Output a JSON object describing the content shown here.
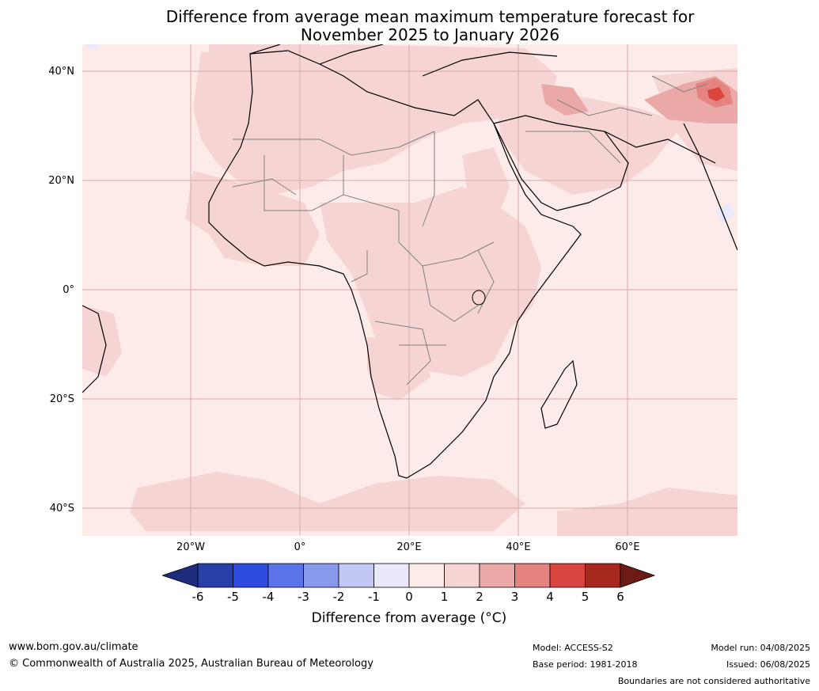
{
  "title": {
    "line1": "Difference from average mean maximum temperature forecast for",
    "line2": "November 2025 to January 2026"
  },
  "map": {
    "lat_labels": [
      "40°N",
      "20°N",
      "0°",
      "20°S",
      "40°S"
    ],
    "lon_labels": [
      "20°W",
      "0°",
      "20°E",
      "40°E",
      "60°E"
    ],
    "colors": {
      "background": "#fcebe9",
      "warm_1_2": "#f5d4d3",
      "warm_2_3": "#eaa8a7",
      "warm_3_4": "#e48380",
      "warm_4_5": "#d9463f",
      "cool_0_1": "#e9e9fb",
      "gridline": "#d9a9a9",
      "border": "#808080",
      "coast": "#000000"
    }
  },
  "colorbar": {
    "ticks": [
      "-6",
      "-5",
      "-4",
      "-3",
      "-2",
      "-1",
      "0",
      "1",
      "2",
      "3",
      "4",
      "5",
      "6"
    ],
    "colors": [
      "#1d2c7c",
      "#283ea8",
      "#2e4bdf",
      "#5a73e6",
      "#8899ec",
      "#c1c8f3",
      "#e9e9fb",
      "#fcebe9",
      "#f5d4d3",
      "#eaa8a7",
      "#e48380",
      "#d9463f",
      "#a7281f",
      "#6e1a16"
    ],
    "label": "Difference from average (°C)"
  },
  "footer": {
    "url": "www.bom.gov.au/climate",
    "copyright": "© Commonwealth of Australia 2025, Australian Bureau of Meteorology",
    "model": "Model: ACCESS-S2",
    "base_period": "Base period: 1981-2018",
    "model_run": "Model run: 04/08/2025",
    "issued": "Issued: 06/08/2025",
    "disclaimer": "Boundaries are not considered authoritative"
  }
}
